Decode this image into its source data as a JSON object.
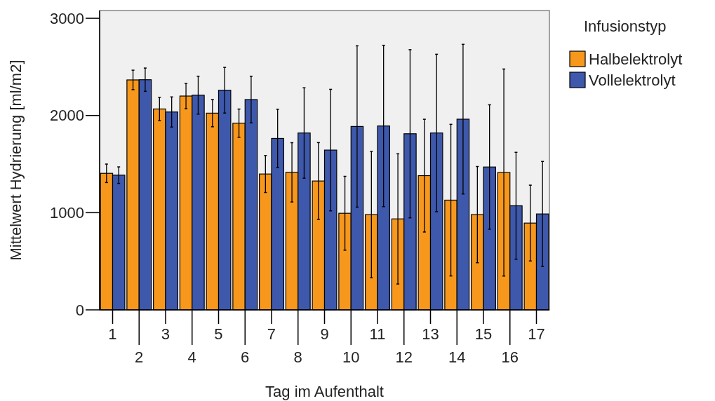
{
  "chart_data": {
    "type": "bar",
    "xlabel": "Tag im Aufenthalt",
    "ylabel": "Mittelwert Hydrierung [ml/m2]",
    "legend_title": "Infusionstyp",
    "legend": "top right",
    "grid": false,
    "categories": [
      "1",
      "2",
      "3",
      "4",
      "5",
      "6",
      "7",
      "8",
      "9",
      "10",
      "11",
      "12",
      "13",
      "14",
      "15",
      "16",
      "17"
    ],
    "ylim": [
      0,
      3080
    ],
    "yticks": [
      0,
      1000,
      2000,
      3000
    ],
    "series": [
      {
        "name": "Halbelektrolyt",
        "color": "#f7981d",
        "values": [
          1405,
          2366,
          2067,
          2200,
          2024,
          1921,
          1398,
          1415,
          1326,
          994,
          980,
          936,
          1381,
          1129,
          980,
          1413,
          893
        ],
        "errors": [
          95,
          100,
          120,
          130,
          140,
          145,
          190,
          305,
          395,
          380,
          650,
          670,
          580,
          780,
          495,
          1065,
          390
        ]
      },
      {
        "name": "Vollelektrolyt",
        "color": "#3e58ac",
        "values": [
          1386,
          2368,
          2036,
          2209,
          2260,
          2164,
          1764,
          1820,
          1644,
          1887,
          1892,
          1812,
          1820,
          1962,
          1470,
          1071,
          987
        ],
        "errors": [
          85,
          120,
          155,
          195,
          235,
          240,
          300,
          465,
          625,
          830,
          830,
          865,
          810,
          770,
          640,
          550,
          540
        ]
      }
    ]
  }
}
